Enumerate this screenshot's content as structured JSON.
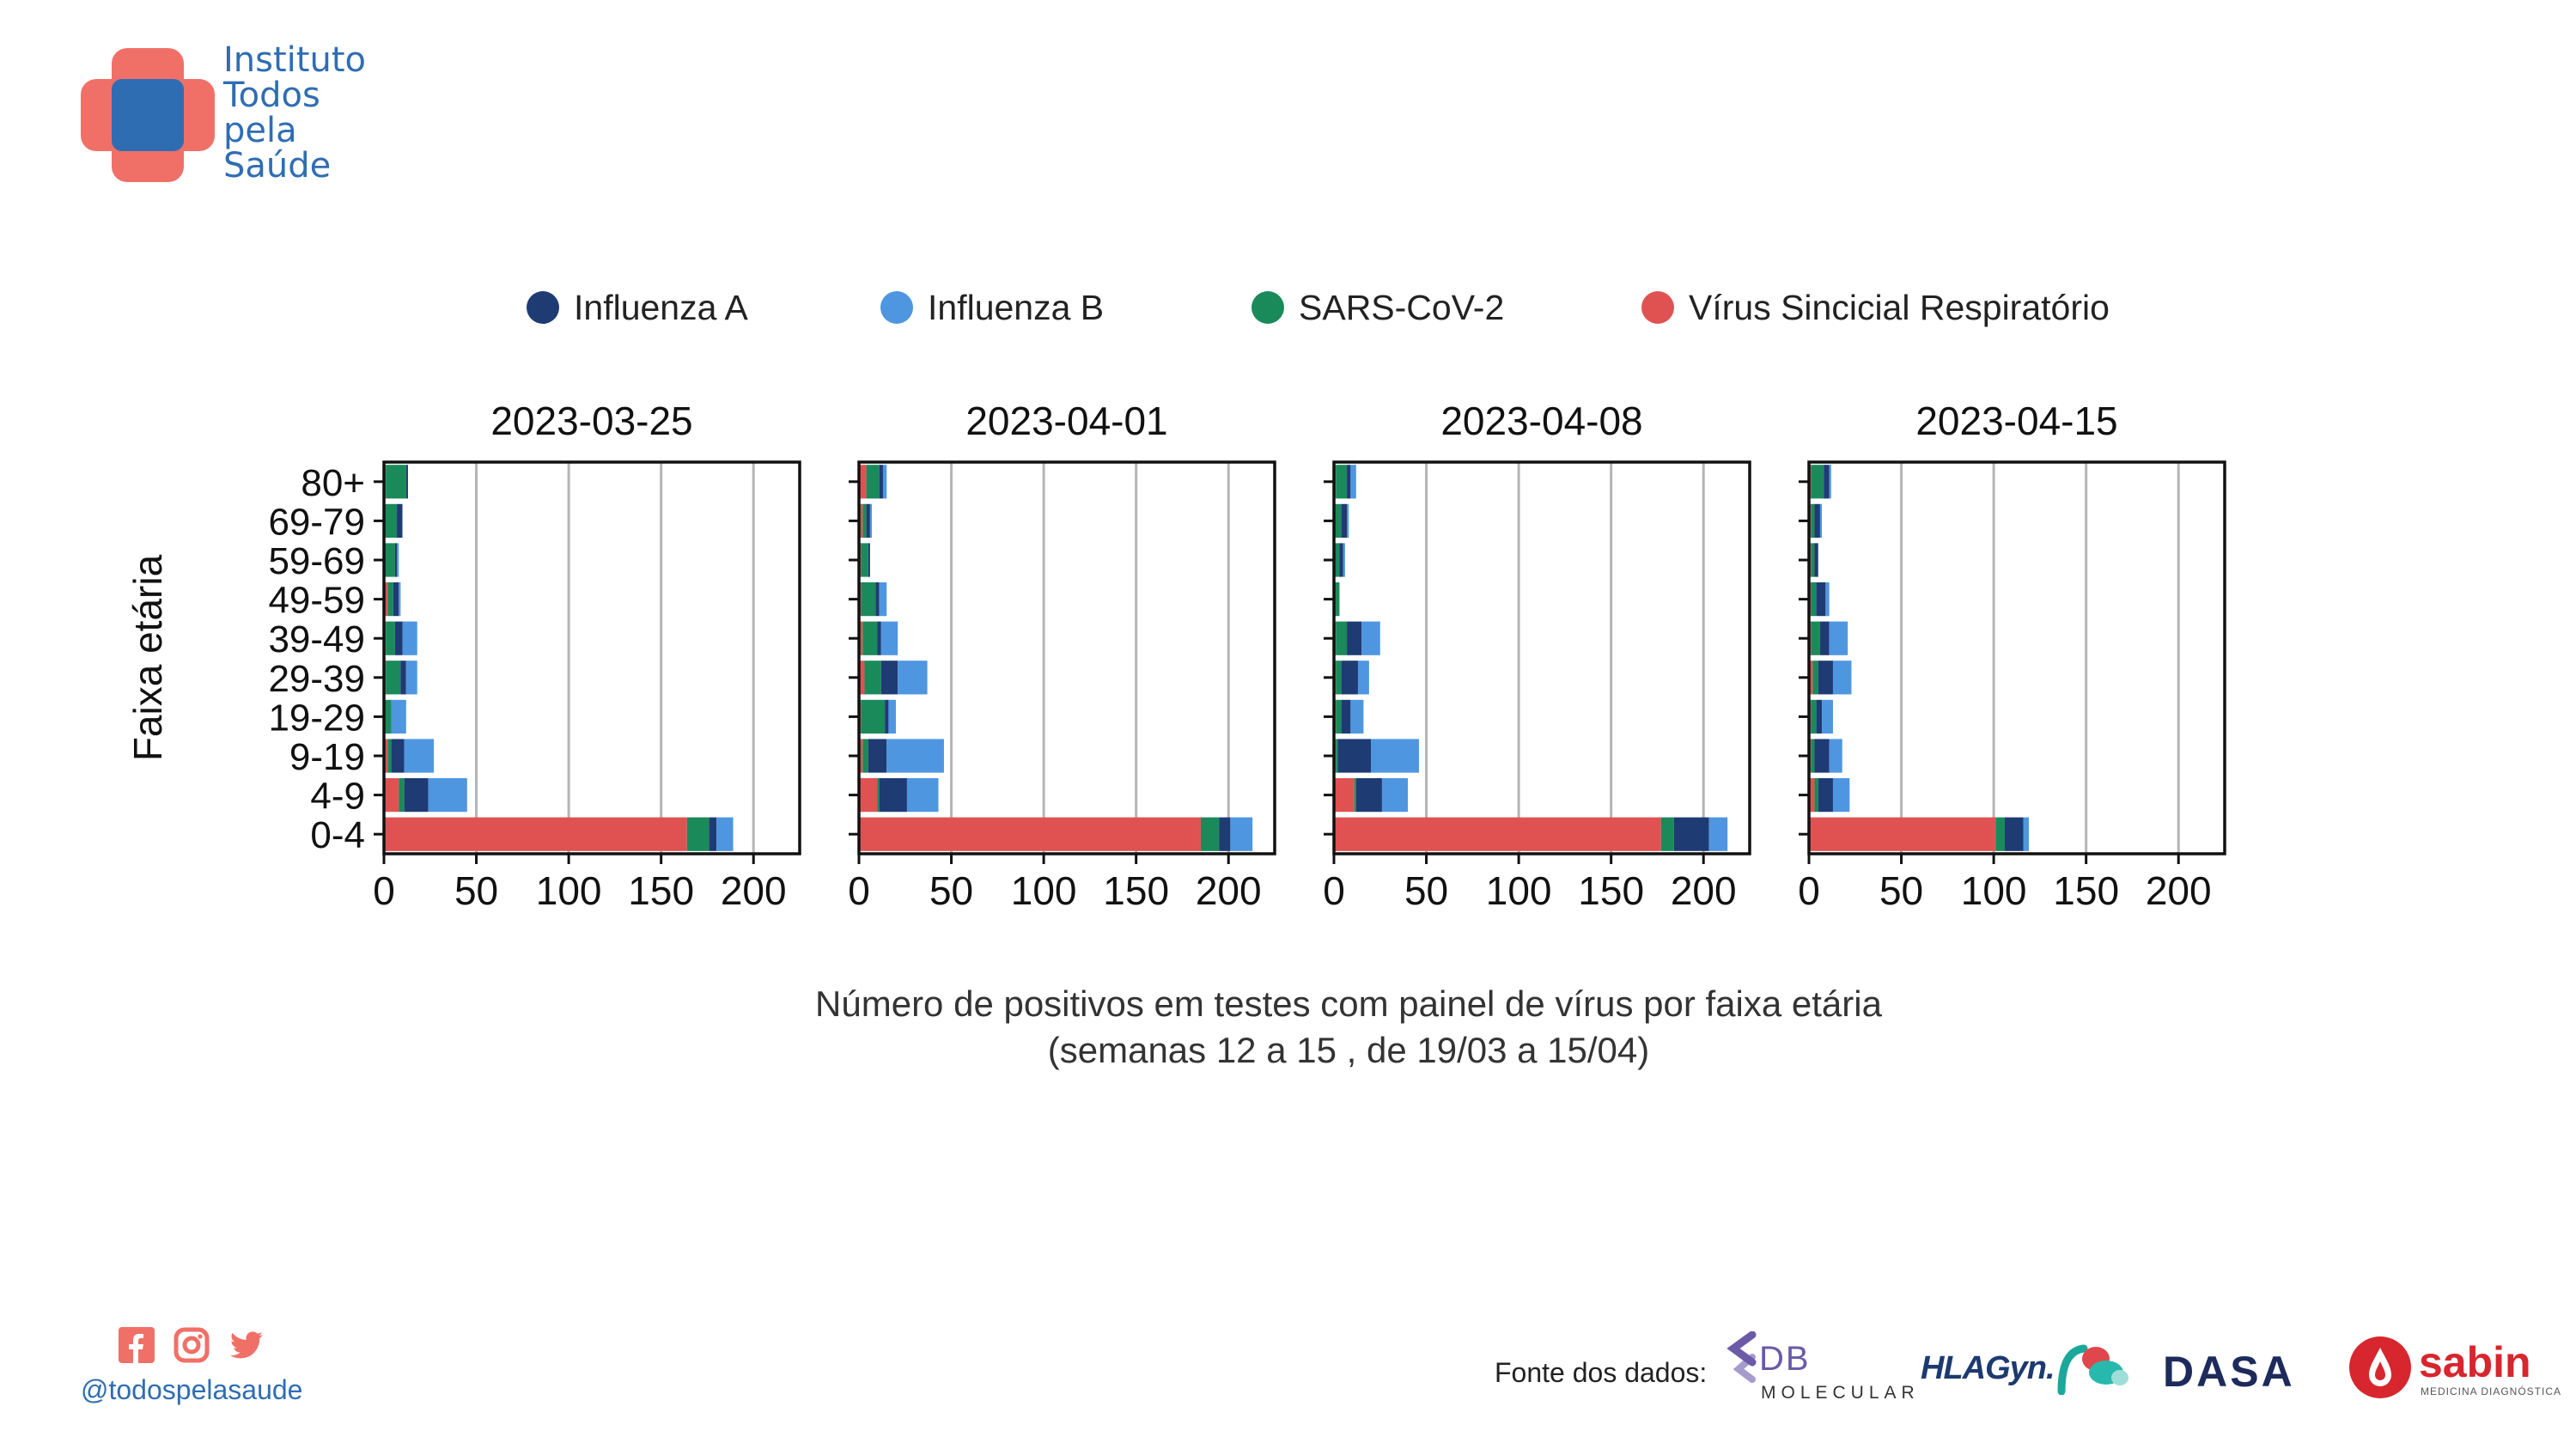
{
  "brand": {
    "name_lines": [
      "Instituto",
      "Todos",
      "pela",
      "Saúde"
    ],
    "colors": {
      "cross_red": "#f07068",
      "cross_blue": "#2f6db3"
    }
  },
  "social": {
    "icons": [
      "facebook-icon",
      "instagram-icon",
      "twitter-icon"
    ],
    "handle": "@todospelasaude",
    "color": "#f07068"
  },
  "legend": {
    "items": [
      {
        "label": "Influenza A",
        "color": "#1f3b73"
      },
      {
        "label": "Influenza B",
        "color": "#4f96e0"
      },
      {
        "label": "SARS-CoV-2",
        "color": "#1a8a5a"
      },
      {
        "label": "Vírus Sincicial Respiratório",
        "color": "#e05252"
      }
    ]
  },
  "chart_data": {
    "type": "bar",
    "orientation": "horizontal",
    "stacked": true,
    "ylabel": "Faixa etária",
    "categories": [
      "80+",
      "69-79",
      "59-69",
      "49-59",
      "39-49",
      "29-39",
      "19-29",
      "9-19",
      "4-9",
      "0-4"
    ],
    "xlim": [
      0,
      225
    ],
    "xticks": [
      "0",
      "50",
      "100",
      "150",
      "200"
    ],
    "grid": "vertical",
    "legend_position": "top",
    "series_order": [
      "Vírus Sincicial Respiratório",
      "SARS-CoV-2",
      "Influenza A",
      "Influenza B"
    ],
    "panels": [
      {
        "title": "2023-03-25",
        "series": [
          {
            "name": "Vírus Sincicial Respiratório",
            "values": [
              1,
              0,
              0,
              2,
              1,
              1,
              0,
              2,
              8,
              164
            ]
          },
          {
            "name": "SARS-CoV-2",
            "values": [
              11,
              7,
              6,
              3,
              5,
              8,
              4,
              2,
              3,
              12
            ]
          },
          {
            "name": "Influenza A",
            "values": [
              1,
              3,
              1,
              3,
              4,
              3,
              0,
              7,
              13,
              4
            ]
          },
          {
            "name": "Influenza B",
            "values": [
              0,
              0,
              1,
              1,
              8,
              6,
              8,
              16,
              21,
              9
            ]
          }
        ]
      },
      {
        "title": "2023-04-01",
        "series": [
          {
            "name": "Vírus Sincicial Respiratório",
            "values": [
              4,
              2,
              1,
              1,
              2,
              3,
              1,
              2,
              10,
              185
            ]
          },
          {
            "name": "SARS-CoV-2",
            "values": [
              7,
              2,
              4,
              8,
              8,
              9,
              13,
              3,
              1,
              10
            ]
          },
          {
            "name": "Influenza A",
            "values": [
              2,
              2,
              1,
              2,
              2,
              9,
              2,
              10,
              15,
              6
            ]
          },
          {
            "name": "Influenza B",
            "values": [
              2,
              1,
              0,
              4,
              9,
              16,
              4,
              31,
              17,
              12
            ]
          }
        ]
      },
      {
        "title": "2023-04-08",
        "series": [
          {
            "name": "Vírus Sincicial Respiratório",
            "values": [
              1,
              0,
              0,
              0,
              1,
              1,
              1,
              1,
              11,
              177
            ]
          },
          {
            "name": "SARS-CoV-2",
            "values": [
              6,
              4,
              3,
              3,
              6,
              3,
              3,
              1,
              1,
              7
            ]
          },
          {
            "name": "Influenza A",
            "values": [
              2,
              3,
              2,
              0,
              8,
              9,
              5,
              18,
              14,
              19
            ]
          },
          {
            "name": "Influenza B",
            "values": [
              3,
              1,
              1,
              0,
              10,
              6,
              7,
              26,
              14,
              10
            ]
          }
        ]
      },
      {
        "title": "2023-04-15",
        "series": [
          {
            "name": "Vírus Sincicial Respiratório",
            "values": [
              1,
              1,
              1,
              1,
              1,
              2,
              1,
              1,
              3,
              101
            ]
          },
          {
            "name": "SARS-CoV-2",
            "values": [
              7,
              2,
              2,
              3,
              5,
              3,
              3,
              2,
              2,
              5
            ]
          },
          {
            "name": "Influenza A",
            "values": [
              3,
              3,
              2,
              5,
              5,
              8,
              3,
              8,
              8,
              10
            ]
          },
          {
            "name": "Influenza B",
            "values": [
              1,
              1,
              0,
              2,
              10,
              10,
              6,
              7,
              9,
              3
            ]
          }
        ]
      }
    ]
  },
  "caption": {
    "line1": "Número de positivos em testes com painel de vírus por faixa etária",
    "line2": "(semanas 12 a 15 , de 19/03 a 15/04)"
  },
  "sources": {
    "label": "Fonte dos dados:",
    "logos": [
      {
        "name": "db-molecular-logo",
        "text_top": "DB",
        "text_bottom": "MOLECULAR",
        "color": "#6b5aa8"
      },
      {
        "name": "hlagyn-logo",
        "text": "HLAGyn.",
        "color": "#1d3a70"
      },
      {
        "name": "dasa-logo",
        "text": "DASA",
        "color": "#1d2b5c"
      },
      {
        "name": "sabin-logo",
        "text": "sabin",
        "subtitle": "MEDICINA DIAGNÓSTICA",
        "color": "#d7262e"
      }
    ]
  }
}
